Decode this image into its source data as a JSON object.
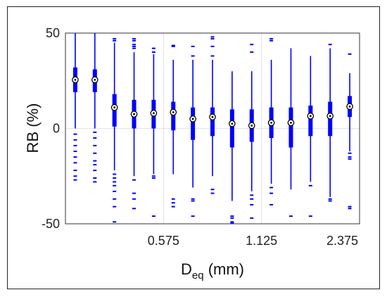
{
  "chart_data": {
    "type": "boxplot",
    "xlabel_main": "D",
    "xlabel_sub": "eq",
    "xlabel_unit": " (mm)",
    "ylabel": "RB (%)",
    "ylim": [
      -50,
      50
    ],
    "yticks": [
      -50,
      0,
      50
    ],
    "ytick_labels": [
      "-50",
      "0",
      "50"
    ],
    "xtick_labels": [
      {
        "category_index": 5,
        "label": "0.575"
      },
      {
        "category_index": 10,
        "label": "1.125"
      },
      {
        "category_index": 15,
        "label": "2.375"
      }
    ],
    "grid": true,
    "box_color": "#0000ff",
    "categories": [
      "1",
      "2",
      "3",
      "4",
      "5",
      "6",
      "7",
      "8",
      "9",
      "10",
      "11",
      "12",
      "13",
      "14",
      "15"
    ],
    "boxes": [
      {
        "median": 25.5,
        "q1": 19,
        "q3": 32,
        "whisker_low": 0,
        "whisker_high": 50,
        "outliers": [
          -3,
          -6,
          -9,
          -12,
          -15,
          -18,
          -22,
          -25,
          -27
        ]
      },
      {
        "median": 25.5,
        "q1": 19,
        "q3": 31,
        "whisker_low": 0,
        "whisker_high": 50,
        "outliers": [
          -2,
          -5,
          -9,
          -13,
          -17,
          -19,
          -22,
          -26,
          -28
        ]
      },
      {
        "median": 11,
        "q1": 1,
        "q3": 18,
        "whisker_low": -22,
        "whisker_high": 45,
        "outliers": [
          -24,
          -26,
          -28,
          -30,
          -33,
          -37,
          -41,
          -49,
          46,
          47
        ]
      },
      {
        "median": 7.5,
        "q1": 0,
        "q3": 15,
        "whisker_low": -25,
        "whisker_high": 40,
        "outliers": [
          -27,
          -34,
          -37,
          -42,
          42,
          43,
          44,
          46,
          47
        ]
      },
      {
        "median": 8,
        "q1": 0,
        "q3": 15,
        "whisker_low": -24,
        "whisker_high": 39,
        "outliers": [
          -25,
          -26,
          -46,
          40,
          42
        ]
      },
      {
        "median": 8.5,
        "q1": -1,
        "q3": 14,
        "whisker_low": -24,
        "whisker_high": 36,
        "outliers": [
          -37,
          -39,
          -41,
          43,
          43.5
        ]
      },
      {
        "median": 5,
        "q1": -6,
        "q3": 11,
        "whisker_low": -31,
        "whisker_high": 36,
        "outliers": [
          -37,
          -38,
          -46,
          38,
          43
        ]
      },
      {
        "median": 6,
        "q1": -4,
        "q3": 11,
        "whisker_low": -25,
        "whisker_high": 36,
        "outliers": [
          -32,
          -34,
          38,
          43,
          47,
          48
        ]
      },
      {
        "median": 2.5,
        "q1": -10,
        "q3": 10,
        "whisker_low": -38,
        "whisker_high": 30,
        "outliers": [
          -46,
          -47,
          -49,
          -49.5
        ]
      },
      {
        "median": 1.5,
        "q1": -7,
        "q3": 10,
        "whisker_low": -33,
        "whisker_high": 30,
        "outliers": [
          -35,
          -37,
          -40,
          -47,
          40,
          44
        ]
      },
      {
        "median": 3,
        "q1": -5,
        "q3": 11,
        "whisker_low": -29,
        "whisker_high": 36,
        "outliers": [
          -31,
          -34,
          -40,
          46,
          47
        ]
      },
      {
        "median": 3,
        "q1": -10,
        "q3": 11,
        "whisker_low": -32,
        "whisker_high": 42,
        "outliers": [
          -46
        ]
      },
      {
        "median": 6.5,
        "q1": -4,
        "q3": 12,
        "whisker_low": -28,
        "whisker_high": 38,
        "outliers": [
          -30,
          -46
        ]
      },
      {
        "median": 6.5,
        "q1": -4,
        "q3": 14,
        "whisker_low": -36,
        "whisker_high": 42,
        "outliers": [
          -37,
          -38,
          44
        ]
      },
      {
        "median": 11.5,
        "q1": 6,
        "q3": 17,
        "whisker_low": -12,
        "whisker_high": 29,
        "outliers": [
          -13,
          -15,
          -16,
          -41,
          -42,
          39
        ]
      }
    ]
  }
}
